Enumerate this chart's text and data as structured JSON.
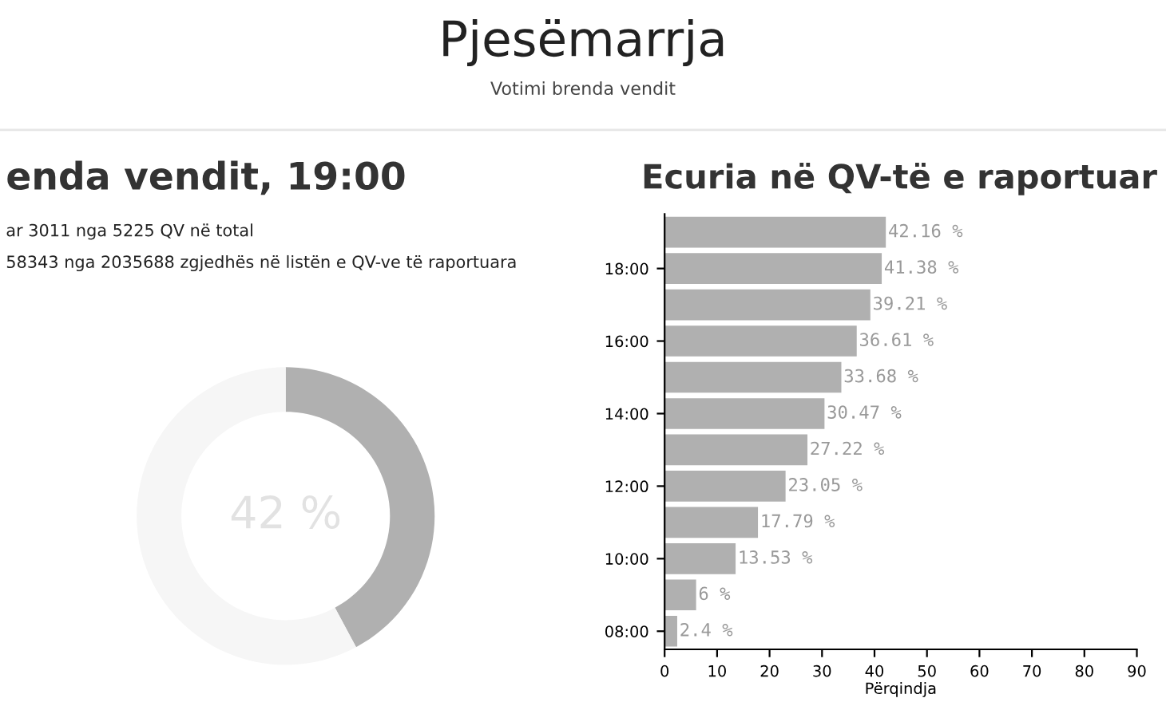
{
  "chart_data": [
    {
      "type": "other",
      "title": "Pjesëmarrja",
      "subtitle": "Votimi brenda vendit"
    },
    {
      "type": "donut",
      "title": "enda vendit, 19:00",
      "annotations": [
        "ar 3011 nga 5225 QV në total",
        "58343 nga 2035688 zgjedhës në listën e QV-ve të raportuara"
      ],
      "categories": [
        null,
        null
      ],
      "values": [
        42.16,
        57.84
      ],
      "colors": [
        "#b0b0b0",
        "#f6f6f6"
      ],
      "value_labels": [
        "42 %",
        null
      ],
      "legend": false
    },
    {
      "type": "bar",
      "orientation": "horizontal",
      "title": "Ecuria në QV-të e raportuar",
      "xlabel": "Përqindja",
      "categories": [
        null,
        "18:00",
        null,
        "16:00",
        null,
        "14:00",
        null,
        "12:00",
        null,
        "10:00",
        null,
        "08:00"
      ],
      "series": [
        {
          "color": "#b0b0b0",
          "values": [
            42.16,
            41.38,
            39.21,
            36.61,
            33.68,
            30.47,
            27.22,
            23.05,
            17.79,
            13.53,
            6,
            2.4
          ]
        }
      ],
      "value_labels": [
        "42.16 %",
        "41.38 %",
        "39.21 %",
        "36.61 %",
        "33.68 %",
        "30.47 %",
        "27.22 %",
        "23.05 %",
        "17.79 %",
        "13.53 %",
        "6 %",
        "2.4 %"
      ],
      "xlim": [
        0,
        90
      ],
      "xticks": [
        0,
        10,
        20,
        30,
        40,
        50,
        60,
        70,
        80,
        90
      ],
      "grid": false,
      "legend": false
    }
  ]
}
